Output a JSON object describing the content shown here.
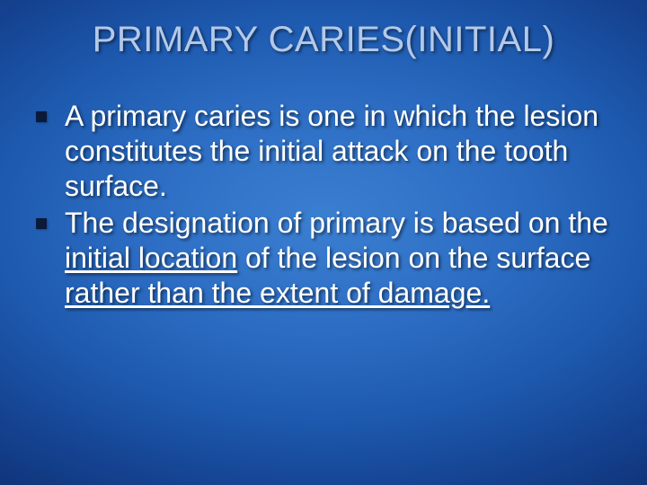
{
  "slide": {
    "title": "PRIMARY CARIES(INITIAL)",
    "title_color": "#b4c9e8",
    "title_fontsize": 40,
    "background_gradient": {
      "type": "radial",
      "stops": [
        "#3b7fd1",
        "#2d6ec4",
        "#1e5bb0",
        "#14418f",
        "#0c2c6a",
        "#08204e"
      ]
    },
    "bullets": [
      {
        "segments": [
          {
            "text": "A primary caries is one in which the lesion constitutes the initial attack on the tooth surface.",
            "underline": false
          }
        ]
      },
      {
        "segments": [
          {
            "text": "The designation of primary is based on the ",
            "underline": false
          },
          {
            "text": "initial location",
            "underline": true
          },
          {
            "text": " of the lesion on the surface ",
            "underline": false
          },
          {
            "text": "rather than the extent of damage.",
            "underline": true
          }
        ]
      }
    ],
    "bullet_marker_color": "#0a1a3a",
    "body_text_color": "#ffffff",
    "body_fontsize": 32
  }
}
